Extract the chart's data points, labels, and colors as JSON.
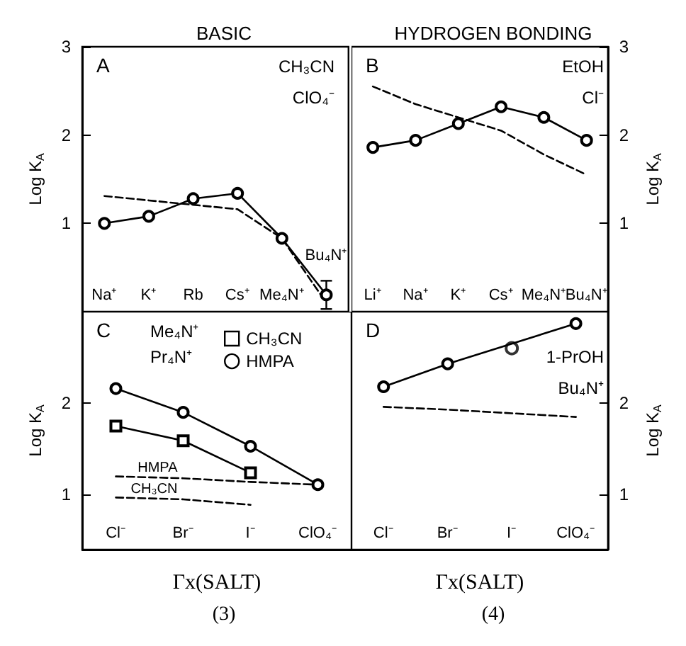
{
  "chart_data": [
    {
      "type": "line",
      "title": "BASIC",
      "ylabel": "Log K$_{A}$",
      "categories": [
        "Na⁺",
        "K⁺",
        "Rb",
        "Cs⁺",
        "Me₄N⁺",
        "Bu₄N⁺"
      ],
      "ylim": [
        0,
        3
      ],
      "yticks": [
        1,
        2,
        3
      ],
      "annotations": [
        "A",
        "CH₃CN",
        "ClO₄⁻"
      ],
      "series": [
        {
          "color": "#000000",
          "marker": "circle",
          "line_style": "solid",
          "values": [
            1.0,
            1.08,
            1.28,
            1.34,
            0.83,
            0.19
          ],
          "errors": [
            null,
            null,
            null,
            null,
            null,
            0.16
          ]
        },
        {
          "color": "#000000",
          "marker": "none",
          "line_style": "dashed",
          "values": [
            1.31,
            1.26,
            1.21,
            1.16,
            0.83,
            0.1
          ]
        }
      ]
    },
    {
      "type": "line",
      "title": "HYDROGEN BONDING",
      "y2label": "Log K$_{A}$",
      "categories": [
        "Li⁺",
        "Na⁺",
        "K⁺",
        "Cs⁺",
        "Me₄N⁺",
        "Bu₄N⁺"
      ],
      "y2lim": [
        0,
        3
      ],
      "y2ticks": [
        1,
        2,
        3
      ],
      "annotations": [
        "B",
        "EtOH",
        "Cl⁻"
      ],
      "series": [
        {
          "color": "#000000",
          "marker": "circle",
          "line_style": "solid",
          "axis": "y2",
          "values": [
            1.86,
            1.94,
            2.13,
            2.32,
            2.2,
            1.94
          ]
        },
        {
          "color": "#000000",
          "marker": "none",
          "line_style": "dashed",
          "axis": "y2",
          "values": [
            2.55,
            2.35,
            2.2,
            2.05,
            1.78,
            1.55
          ]
        }
      ]
    },
    {
      "type": "line",
      "xlabel": "Γx(SALT)",
      "subtitle": "(3)",
      "ylabel": "Log K$_{A}$",
      "categories": [
        "Cl⁻",
        "Br⁻",
        "I⁻",
        "ClO₄⁻"
      ],
      "ylim": [
        0.4,
        3
      ],
      "yticks": [
        1,
        2
      ],
      "legend": "top",
      "annotations": [
        "C",
        "Me₄N⁺",
        "Pr₄N⁺",
        {
          "text": "HMPA",
          "x": "Br⁻",
          "y": 1.18
        },
        {
          "text": "CH₃CN",
          "x": "Br⁻",
          "y": 0.95
        }
      ],
      "series": [
        {
          "name": "CH₃CN",
          "color": "#000000",
          "marker": "square",
          "line_style": "solid",
          "values": [
            1.75,
            1.59,
            1.24,
            null
          ]
        },
        {
          "name": "HMPA",
          "color": "#000000",
          "marker": "circle",
          "line_style": "solid",
          "values": [
            2.16,
            1.9,
            1.53,
            1.11
          ]
        },
        {
          "color": "#000000",
          "marker": "none",
          "line_style": "dashed",
          "values": [
            1.2,
            1.18,
            1.14,
            1.11
          ]
        },
        {
          "color": "#000000",
          "marker": "none",
          "line_style": "dashed",
          "values": [
            0.97,
            0.95,
            0.89,
            null
          ]
        }
      ]
    },
    {
      "type": "line",
      "xlabel": "Γx(SALT)",
      "subtitle": "(4)",
      "y2label": "Log K$_{A}$",
      "categories": [
        "Cl⁻",
        "Br⁻",
        "I⁻",
        "ClO₄⁻"
      ],
      "y2lim": [
        0.4,
        3
      ],
      "y2ticks": [
        1,
        2
      ],
      "annotations": [
        "D",
        "1-PrOH",
        "Bu₄N⁺"
      ],
      "series": [
        {
          "color": "#000000",
          "marker": "circle",
          "line_style": "solid",
          "axis": "y2",
          "x": [
            "Cl⁻",
            "Br⁻",
            "ClO₄⁻"
          ],
          "values": [
            2.18,
            2.43,
            2.87
          ]
        },
        {
          "type": "scatter",
          "color": "#000000",
          "marker": "circle",
          "axis": "y2",
          "x": [
            "I⁻"
          ],
          "values": [
            2.6
          ]
        },
        {
          "color": "#000000",
          "marker": "none",
          "line_style": "dashed",
          "axis": "y2",
          "values": [
            1.96,
            1.93,
            1.89,
            1.85
          ]
        }
      ]
    }
  ]
}
